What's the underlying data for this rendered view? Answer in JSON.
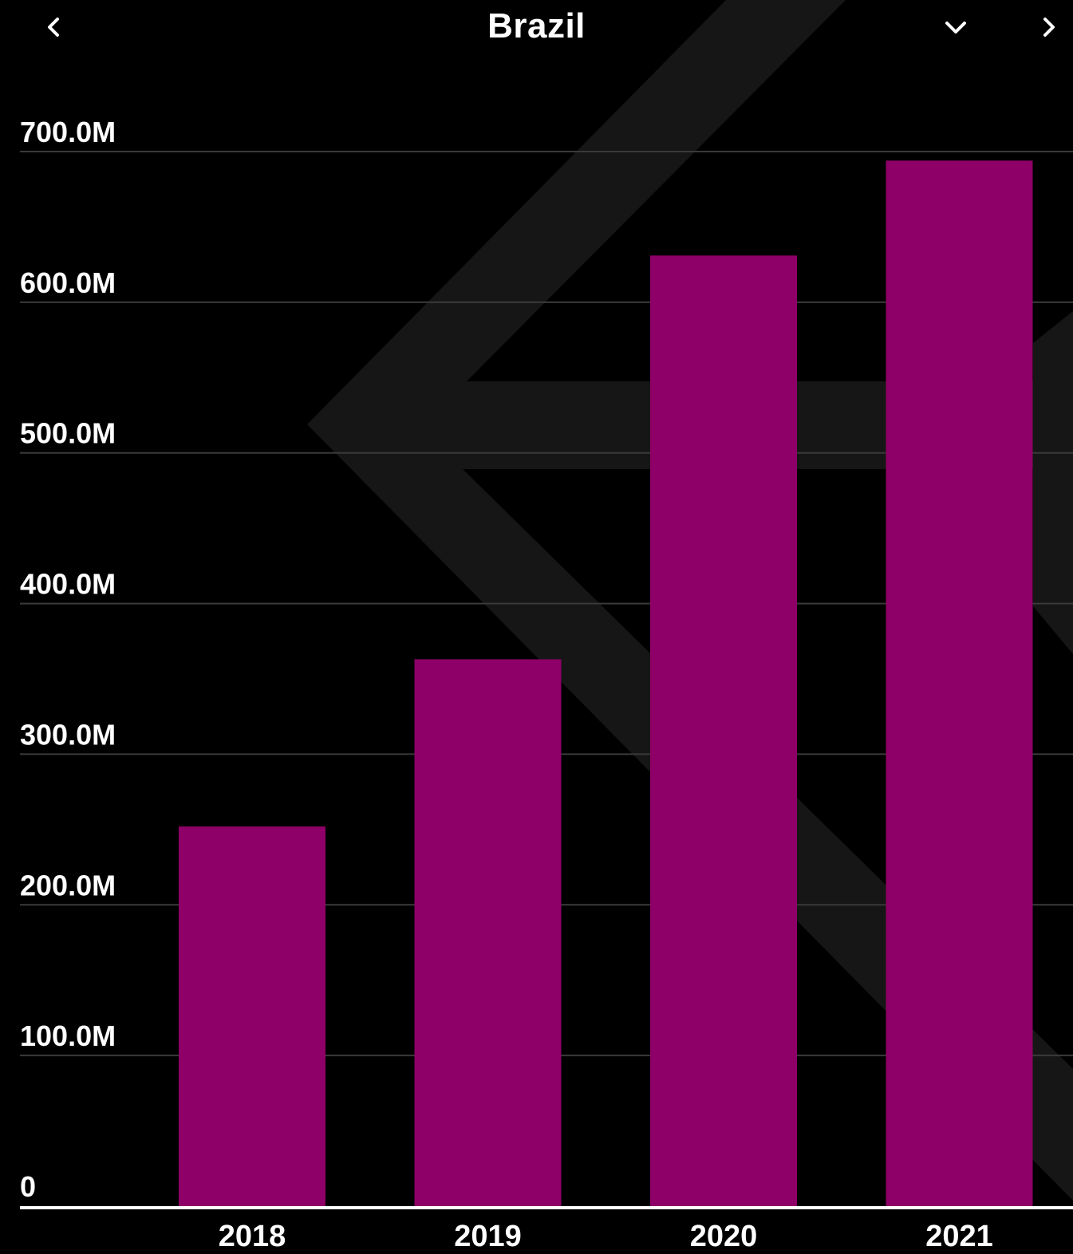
{
  "header": {
    "title": "Brazil",
    "back_icon": "chevron-left-icon",
    "menu_icon": "chevron-down-icon",
    "next_icon": "chevron-right-icon"
  },
  "colors": {
    "background": "#000000",
    "bar": "#8E0067",
    "grid": "#3a3a3a",
    "axis": "#ffffff",
    "watermark": "#161616"
  },
  "chart_data": {
    "type": "bar",
    "title": "Brazil",
    "categories": [
      "2018",
      "2019",
      "2020",
      "2021"
    ],
    "values": [
      252000000,
      363000000,
      631000000,
      694000000
    ],
    "ylim": [
      0,
      700000000
    ],
    "yticks": [
      0,
      100000000,
      200000000,
      300000000,
      400000000,
      500000000,
      600000000,
      700000000
    ],
    "ytick_labels": [
      "0",
      "100.0M",
      "200.0M",
      "300.0M",
      "400.0M",
      "500.0M",
      "600.0M",
      "700.0M"
    ],
    "grid": true,
    "legend": "none"
  }
}
